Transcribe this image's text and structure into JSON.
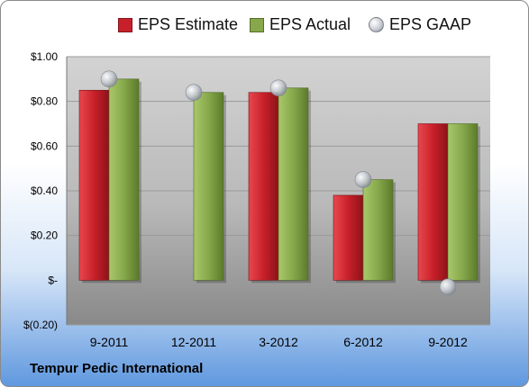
{
  "company_label": "Tempur Pedic International",
  "colors": {
    "estimate": "#c8202a",
    "actual": "#86a84a",
    "gaap": "#c5c9d0"
  },
  "legend": [
    {
      "label": "EPS Estimate",
      "kind": "bar",
      "color_key": "estimate"
    },
    {
      "label": "EPS Actual",
      "kind": "bar",
      "color_key": "actual"
    },
    {
      "label": "EPS GAAP",
      "kind": "dot",
      "color_key": "gaap"
    }
  ],
  "chart_data": {
    "type": "bar",
    "title": "",
    "xlabel": "",
    "ylabel": "",
    "categories": [
      "9-2011",
      "12-2011",
      "3-2012",
      "6-2012",
      "9-2012"
    ],
    "series": [
      {
        "name": "EPS Estimate",
        "kind": "bar",
        "values": [
          0.85,
          null,
          0.84,
          0.38,
          0.7
        ]
      },
      {
        "name": "EPS Actual",
        "kind": "bar",
        "values": [
          0.9,
          0.84,
          0.86,
          0.45,
          0.7
        ]
      },
      {
        "name": "EPS GAAP",
        "kind": "scatter",
        "values": [
          0.9,
          0.84,
          0.86,
          0.45,
          -0.03
        ]
      }
    ],
    "ylim": [
      -0.2,
      1.0
    ],
    "yticks": [
      1.0,
      0.8,
      0.6,
      0.4,
      0.2,
      0.0,
      -0.2
    ],
    "ytick_labels": [
      "$1.00",
      "$0.80",
      "$0.60",
      "$0.40",
      "$0.20",
      "$-",
      "$(0.20)"
    ],
    "grid": true,
    "legend_position": "top"
  }
}
